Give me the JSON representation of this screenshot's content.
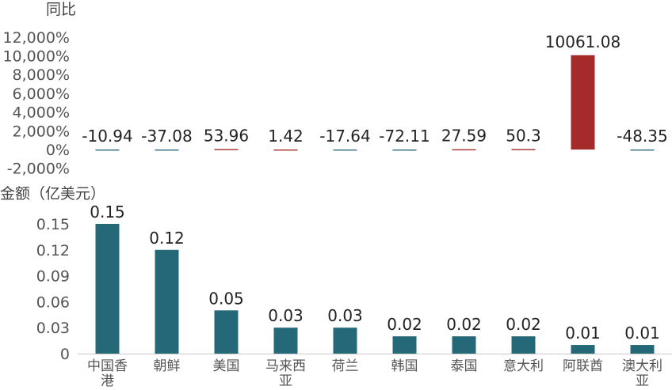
{
  "chart_data": [
    {
      "type": "bar",
      "ylabel": "同比",
      "yticks": [
        "12,000%",
        "10,000%",
        "8,000%",
        "6,000%",
        "4,000%",
        "2,000%",
        "0%",
        "-2,000%"
      ],
      "ylim": [
        -2000,
        12000
      ],
      "categories": [
        "中国香港",
        "朝鲜",
        "美国",
        "马来西亚",
        "荷兰",
        "韩国",
        "泰国",
        "意大利",
        "阿联酋",
        "澳大利亚"
      ],
      "values": [
        -10.94,
        -37.08,
        53.96,
        1.42,
        -17.64,
        -72.11,
        27.59,
        50.3,
        10061.08,
        -48.35
      ],
      "value_labels": [
        "-10.94",
        "-37.08",
        "53.96",
        "1.42",
        "-17.64",
        "-72.11",
        "27.59",
        "50.3",
        "10061.08",
        "-48.35"
      ],
      "colors": {
        "positive": "#a52a2a",
        "negative": "#2b6a7d"
      },
      "grid": false
    },
    {
      "type": "bar",
      "ylabel": "金额（亿美元）",
      "yticks": [
        "0.15",
        "0.12",
        "0.09",
        "0.06",
        "0.03",
        "0"
      ],
      "ylim": [
        0,
        0.15
      ],
      "categories": [
        "中国香港",
        "朝鲜",
        "美国",
        "马来西亚",
        "荷兰",
        "韩国",
        "泰国",
        "意大利",
        "阿联酋",
        "澳大利亚"
      ],
      "category_lines": [
        [
          "中国香",
          "港"
        ],
        [
          "朝鲜"
        ],
        [
          "美国"
        ],
        [
          "马来西",
          "亚"
        ],
        [
          "荷兰"
        ],
        [
          "韩国"
        ],
        [
          "泰国"
        ],
        [
          "意大利"
        ],
        [
          "阿联酋"
        ],
        [
          "澳大利",
          "亚"
        ]
      ],
      "values": [
        0.15,
        0.12,
        0.05,
        0.03,
        0.03,
        0.02,
        0.02,
        0.02,
        0.01,
        0.01
      ],
      "value_labels": [
        "0.15",
        "0.12",
        "0.05",
        "0.03",
        "0.03",
        "0.02",
        "0.02",
        "0.02",
        "0.01",
        "0.01"
      ],
      "color": "#256878",
      "grid": false
    }
  ]
}
